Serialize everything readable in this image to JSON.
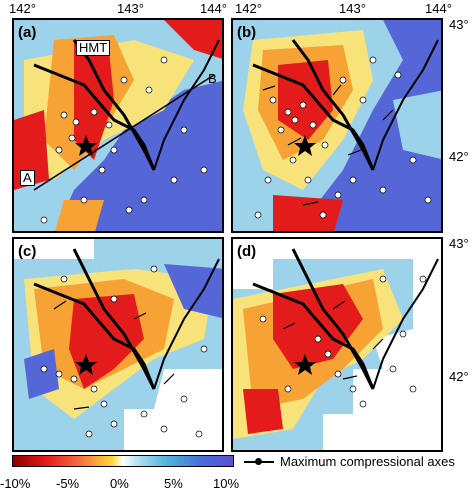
{
  "lon_labels": [
    "142°",
    "143°",
    "144°"
  ],
  "lat_labels": [
    "43°",
    "42°"
  ],
  "panels": [
    {
      "letter": "(a)"
    },
    {
      "letter": "(b)"
    },
    {
      "letter": "(c)"
    },
    {
      "letter": "(d)"
    }
  ],
  "annotations": {
    "fault": "HMT",
    "profile_start": "A",
    "profile_end": "B"
  },
  "colorbar": {
    "ticks": [
      "-10%",
      "-5%",
      "0%",
      "5%",
      "10%"
    ],
    "values": [
      -10,
      -5,
      0,
      5,
      10
    ],
    "colors": [
      "#8b0000",
      "#e41a1c",
      "#f46d43",
      "#fdd835",
      "#ffffff",
      "#a6dcef",
      "#4fb3d9",
      "#4a6fd9",
      "#5a4fcf"
    ]
  },
  "legend": {
    "compression_axes": "Maximum compressional axes"
  }
}
